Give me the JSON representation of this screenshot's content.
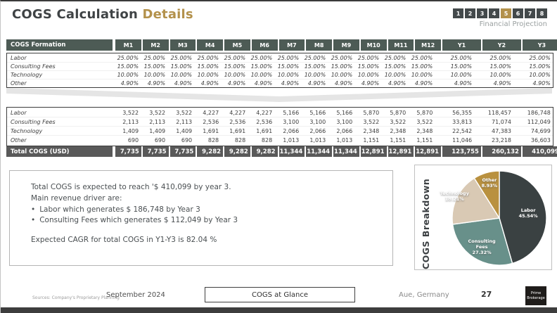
{
  "header": {
    "title_main": "COGS Calculation",
    "title_accent": "Details",
    "subtitle": "Financial Projection",
    "pages": [
      "1",
      "2",
      "3",
      "4",
      "5",
      "6",
      "7",
      "8"
    ],
    "active_page": "5",
    "accent_color": "#b3914b"
  },
  "table": {
    "header_label": "COGS Formation",
    "columns": [
      "M1",
      "M2",
      "M3",
      "M4",
      "M5",
      "M6",
      "M7",
      "M8",
      "M9",
      "M10",
      "M11",
      "M12",
      "Y1",
      "Y2",
      "Y3"
    ],
    "pct_rows": [
      {
        "label": "Labor",
        "values": [
          "25.00%",
          "25.00%",
          "25.00%",
          "25.00%",
          "25.00%",
          "25.00%",
          "25.00%",
          "25.00%",
          "25.00%",
          "25.00%",
          "25.00%",
          "25.00%",
          "25.00%",
          "25.00%",
          "25.00%"
        ]
      },
      {
        "label": "Consulting Fees",
        "values": [
          "15.00%",
          "15.00%",
          "15.00%",
          "15.00%",
          "15.00%",
          "15.00%",
          "15.00%",
          "15.00%",
          "15.00%",
          "15.00%",
          "15.00%",
          "15.00%",
          "15.00%",
          "15.00%",
          "15.00%"
        ]
      },
      {
        "label": "Technology",
        "values": [
          "10.00%",
          "10.00%",
          "10.00%",
          "10.00%",
          "10.00%",
          "10.00%",
          "10.00%",
          "10.00%",
          "10.00%",
          "10.00%",
          "10.00%",
          "10.00%",
          "10.00%",
          "10.00%",
          "10.00%"
        ]
      },
      {
        "label": "Other",
        "values": [
          "4.90%",
          "4.90%",
          "4.90%",
          "4.90%",
          "4.90%",
          "4.90%",
          "4.90%",
          "4.90%",
          "4.90%",
          "4.90%",
          "4.90%",
          "4.90%",
          "4.90%",
          "4.90%",
          "4.90%"
        ]
      }
    ],
    "value_rows": [
      {
        "label": "Labor",
        "values": [
          "3,522",
          "3,522",
          "3,522",
          "4,227",
          "4,227",
          "4,227",
          "5,166",
          "5,166",
          "5,166",
          "5,870",
          "5,870",
          "5,870",
          "56,355",
          "118,457",
          "186,748"
        ]
      },
      {
        "label": "Consulting Fees",
        "values": [
          "2,113",
          "2,113",
          "2,113",
          "2,536",
          "2,536",
          "2,536",
          "3,100",
          "3,100",
          "3,100",
          "3,522",
          "3,522",
          "3,522",
          "33,813",
          "71,074",
          "112,049"
        ]
      },
      {
        "label": "Technology",
        "values": [
          "1,409",
          "1,409",
          "1,409",
          "1,691",
          "1,691",
          "1,691",
          "2,066",
          "2,066",
          "2,066",
          "2,348",
          "2,348",
          "2,348",
          "22,542",
          "47,383",
          "74,699"
        ]
      },
      {
        "label": "Other",
        "values": [
          "690",
          "690",
          "690",
          "828",
          "828",
          "828",
          "1,013",
          "1,013",
          "1,013",
          "1,151",
          "1,151",
          "1,151",
          "11,046",
          "23,218",
          "36,603"
        ]
      }
    ],
    "total_row": {
      "label": "Total COGS (USD)",
      "values": [
        "7,735",
        "7,735",
        "7,735",
        "9,282",
        "9,282",
        "9,282",
        "11,344",
        "11,344",
        "11,344",
        "12,891",
        "12,891",
        "12,891",
        "123,755",
        "260,132",
        "410,099"
      ]
    }
  },
  "summary": {
    "line1": "Total COGS is expected to reach '$ 410,099 by year 3.",
    "line2": "Main revenue driver are:",
    "bullets": [
      "Labor which generates $ 186,748 by Year 3",
      "Consulting Fees which generates $ 112,049 by Year 3"
    ],
    "cagr_line": "Expected CAGR for total COGS in Y1-Y3 is 82.04 %"
  },
  "chart_data": {
    "type": "pie",
    "title": "COGS Breakdown",
    "labels": [
      "Labor",
      "Consulting Fees",
      "Technology",
      "Other"
    ],
    "values": [
      45.54,
      27.32,
      18.21,
      8.93
    ],
    "colors": [
      "#3a4142",
      "#68908a",
      "#d9c9b4",
      "#b9913f"
    ],
    "start_angle_deg": 0,
    "direction": "clockwise",
    "legend_position": "none",
    "label_format": "name + percent",
    "label_radius": [
      0.62,
      0.68,
      1.05,
      0.76
    ]
  },
  "footer": {
    "source": "Sources: Company's Proprietary Planning",
    "date": "September 2024",
    "center_label": "COGS at Glance",
    "location": "Aue, Germany",
    "page_number": "27",
    "logo_line1": "Prime",
    "logo_line2": "Brokerage"
  }
}
